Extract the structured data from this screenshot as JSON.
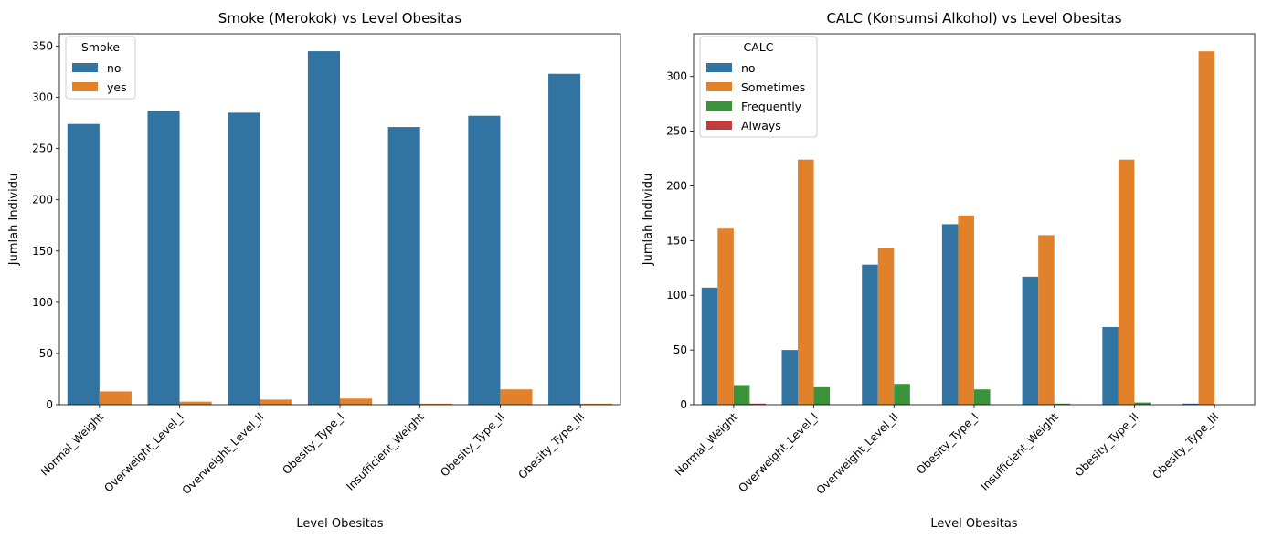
{
  "chart_data": [
    {
      "type": "bar",
      "title": "Smoke (Merokok) vs Level Obesitas",
      "xlabel": "Level Obesitas",
      "ylabel": "Jumlah Individu",
      "categories": [
        "Normal_Weight",
        "Overweight_Level_I",
        "Overweight_Level_II",
        "Obesity_Type_I",
        "Insufficient_Weight",
        "Obesity_Type_II",
        "Obesity_Type_III"
      ],
      "ylim": [
        0,
        362
      ],
      "yticks": [
        0,
        50,
        100,
        150,
        200,
        250,
        300,
        350
      ],
      "legend_title": "Smoke",
      "legend_position": "top-left",
      "series": [
        {
          "name": "no",
          "color": "#3274a1",
          "values": [
            274,
            287,
            285,
            345,
            271,
            282,
            323
          ]
        },
        {
          "name": "yes",
          "color": "#e1812c",
          "values": [
            13,
            3,
            5,
            6,
            1,
            15,
            1
          ]
        }
      ]
    },
    {
      "type": "bar",
      "title": "CALC (Konsumsi Alkohol) vs Level Obesitas",
      "xlabel": "Level Obesitas",
      "ylabel": "Jumlah Individu",
      "categories": [
        "Normal_Weight",
        "Overweight_Level_I",
        "Overweight_Level_II",
        "Obesity_Type_I",
        "Insufficient_Weight",
        "Obesity_Type_II",
        "Obesity_Type_III"
      ],
      "ylim": [
        0,
        339
      ],
      "yticks": [
        0,
        50,
        100,
        150,
        200,
        250,
        300
      ],
      "legend_title": "CALC",
      "legend_position": "top-left",
      "series": [
        {
          "name": "no",
          "color": "#3274a1",
          "values": [
            107,
            50,
            128,
            165,
            117,
            71,
            1
          ]
        },
        {
          "name": "Sometimes",
          "color": "#e1812c",
          "values": [
            161,
            224,
            143,
            173,
            155,
            224,
            323
          ]
        },
        {
          "name": "Frequently",
          "color": "#3a923a",
          "values": [
            18,
            16,
            19,
            14,
            1,
            2,
            0
          ]
        },
        {
          "name": "Always",
          "color": "#c03d3e",
          "values": [
            1,
            0,
            0,
            0,
            0,
            0,
            0
          ]
        }
      ]
    }
  ]
}
